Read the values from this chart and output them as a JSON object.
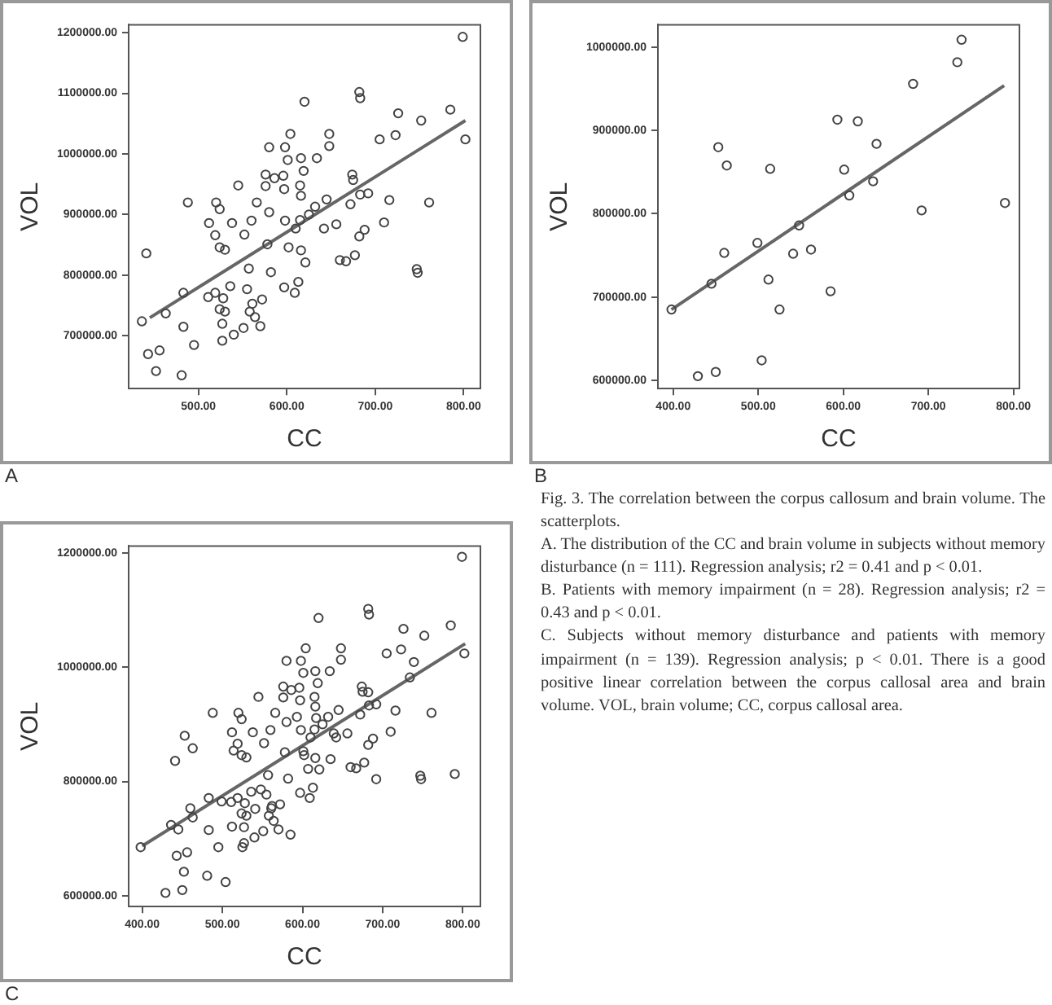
{
  "chart_data": [
    {
      "type": "scatter",
      "xlabel": "CC",
      "ylabel": "VOL",
      "annotations": [
        "A"
      ],
      "grid": false,
      "legend": false,
      "xlim": [
        421,
        819
      ],
      "ylim": [
        613000,
        1213000
      ],
      "xticks": [
        {
          "value": 500,
          "label": "500.00"
        },
        {
          "value": 600,
          "label": "600.00"
        },
        {
          "value": 700,
          "label": "700.00"
        },
        {
          "value": 800,
          "label": "800.00"
        }
      ],
      "yticks": [
        {
          "value": 700000,
          "label": "700000.00"
        },
        {
          "value": 800000,
          "label": "800000.00"
        },
        {
          "value": 900000,
          "label": "900000.00"
        },
        {
          "value": 1000000,
          "label": "1000000.00"
        },
        {
          "value": 1100000,
          "label": "1100000.00"
        },
        {
          "value": 1200000,
          "label": "1200000.00"
        }
      ],
      "series": [
        {
          "color": "#444444",
          "marker": "circle",
          "x": [
            436,
            441,
            443,
            456,
            452,
            463,
            481,
            483,
            483,
            488,
            495,
            512,
            511,
            519,
            520,
            524,
            524,
            530,
            519,
            524,
            528,
            530,
            527,
            527,
            536,
            538,
            540,
            545,
            551,
            552,
            555,
            558,
            560,
            561,
            564,
            566,
            557,
            572,
            570,
            576,
            580,
            580,
            582,
            578,
            576,
            586,
            596,
            597,
            598,
            604,
            601,
            598,
            597,
            799,
            620,
            682,
            683,
            726,
            752,
            785,
            802,
            723,
            705,
            648,
            648,
            634,
            616,
            619,
            615,
            616,
            674,
            675,
            672,
            683,
            692,
            716,
            761,
            632,
            645,
            625,
            615,
            610,
            642,
            656,
            710,
            682,
            688,
            602,
            616,
            621,
            660,
            667,
            677,
            747,
            748,
            613,
            609
          ],
          "values": [
            724000,
            836000,
            670000,
            676000,
            642000,
            737000,
            635000,
            715000,
            771000,
            920000,
            685000,
            886000,
            764000,
            866000,
            920000,
            909000,
            846000,
            842000,
            771000,
            744000,
            762000,
            740000,
            720000,
            692000,
            782000,
            886000,
            702000,
            948000,
            713000,
            867000,
            777000,
            740000,
            890000,
            753000,
            731000,
            920000,
            811000,
            760000,
            716000,
            947000,
            1011000,
            904000,
            805000,
            851000,
            966000,
            960000,
            964000,
            942000,
            1011000,
            1033000,
            990000,
            890000,
            780000,
            1193000,
            1086000,
            1102000,
            1092000,
            1067000,
            1055000,
            1073000,
            1024000,
            1031000,
            1024000,
            1033000,
            1013000,
            993000,
            993000,
            972000,
            948000,
            931000,
            966000,
            957000,
            917000,
            933000,
            935000,
            924000,
            920000,
            913000,
            925000,
            900000,
            891000,
            877000,
            877000,
            884000,
            887000,
            864000,
            875000,
            846000,
            841000,
            821000,
            825000,
            823000,
            833000,
            810000,
            804000,
            789000,
            771000
          ]
        },
        {
          "type": "line",
          "marker": "none",
          "color": "#666666",
          "x": [
            445,
            802
          ],
          "values": [
            730000,
            1055000
          ]
        }
      ]
    },
    {
      "type": "scatter",
      "xlabel": "CC",
      "ylabel": "VOL",
      "annotations": [
        "B"
      ],
      "grid": false,
      "legend": false,
      "xlim": [
        382,
        807
      ],
      "ylim": [
        590000,
        1027000
      ],
      "xticks": [
        {
          "value": 400,
          "label": "400.00"
        },
        {
          "value": 500,
          "label": "500.00"
        },
        {
          "value": 600,
          "label": "600.00"
        },
        {
          "value": 700,
          "label": "700.00"
        },
        {
          "value": 800,
          "label": "800.00"
        }
      ],
      "yticks": [
        {
          "value": 600000,
          "label": "600000.00"
        },
        {
          "value": 700000,
          "label": "700000.00"
        },
        {
          "value": 800000,
          "label": "800000.00"
        },
        {
          "value": 900000,
          "label": "900000.00"
        },
        {
          "value": 1000000,
          "label": "1000000.00"
        }
      ],
      "series": [
        {
          "color": "#444444",
          "marker": "circle",
          "x": [
            398,
            429,
            445,
            450,
            453,
            460,
            463,
            499,
            504,
            512,
            514,
            525,
            541,
            548,
            562,
            585,
            593,
            601,
            607,
            617,
            635,
            639,
            682,
            692,
            734,
            739,
            790
          ],
          "values": [
            685000,
            605000,
            716000,
            610000,
            880000,
            753000,
            858000,
            765000,
            624000,
            721000,
            854000,
            685000,
            752000,
            786000,
            757000,
            707000,
            913000,
            853000,
            822000,
            911000,
            839000,
            884000,
            956000,
            804000,
            982000,
            1009000,
            813000
          ]
        },
        {
          "type": "line",
          "marker": "none",
          "color": "#666666",
          "x": [
            398,
            789
          ],
          "values": [
            685000,
            954000
          ]
        }
      ]
    },
    {
      "type": "scatter",
      "xlabel": "CC",
      "ylabel": "VOL",
      "annotations": [
        "C"
      ],
      "grid": false,
      "legend": false,
      "xlim": [
        383,
        822
      ],
      "ylim": [
        581000,
        1212000
      ],
      "xticks": [
        {
          "value": 400,
          "label": "400.00"
        },
        {
          "value": 500,
          "label": "500.00"
        },
        {
          "value": 600,
          "label": "600.00"
        },
        {
          "value": 700,
          "label": "700.00"
        },
        {
          "value": 800,
          "label": "800.00"
        }
      ],
      "yticks": [
        {
          "value": 600000,
          "label": "600000.00"
        },
        {
          "value": 800000,
          "label": "800000.00"
        },
        {
          "value": 1000000,
          "label": "1000000.00"
        },
        {
          "value": 1200000,
          "label": "1200000.00"
        }
      ],
      "series": [
        {
          "color": "#444444",
          "marker": "circle",
          "x": [
            436,
            441,
            443,
            456,
            452,
            463,
            481,
            483,
            483,
            488,
            495,
            512,
            511,
            519,
            520,
            524,
            524,
            530,
            519,
            524,
            528,
            530,
            527,
            527,
            536,
            538,
            540,
            545,
            551,
            552,
            555,
            558,
            560,
            561,
            564,
            566,
            557,
            572,
            570,
            576,
            580,
            580,
            582,
            578,
            576,
            586,
            596,
            597,
            598,
            604,
            601,
            598,
            597,
            799,
            620,
            682,
            683,
            726,
            752,
            785,
            802,
            723,
            705,
            648,
            648,
            634,
            616,
            619,
            615,
            616,
            674,
            675,
            672,
            683,
            692,
            716,
            761,
            632,
            645,
            625,
            615,
            610,
            642,
            656,
            710,
            682,
            688,
            602,
            616,
            621,
            660,
            667,
            677,
            747,
            748,
            613,
            609,
            398,
            429,
            445,
            450,
            453,
            460,
            463,
            499,
            504,
            512,
            514,
            525,
            541,
            548,
            562,
            585,
            593,
            601,
            607,
            617,
            635,
            639,
            682,
            692,
            734,
            739,
            790
          ],
          "values": [
            724000,
            836000,
            670000,
            676000,
            642000,
            737000,
            635000,
            715000,
            771000,
            920000,
            685000,
            886000,
            764000,
            866000,
            920000,
            909000,
            846000,
            842000,
            771000,
            744000,
            762000,
            740000,
            720000,
            692000,
            782000,
            886000,
            702000,
            948000,
            713000,
            867000,
            777000,
            740000,
            890000,
            753000,
            731000,
            920000,
            811000,
            760000,
            716000,
            947000,
            1011000,
            904000,
            805000,
            851000,
            966000,
            960000,
            964000,
            942000,
            1011000,
            1033000,
            990000,
            890000,
            780000,
            1193000,
            1086000,
            1102000,
            1092000,
            1067000,
            1055000,
            1073000,
            1024000,
            1031000,
            1024000,
            1033000,
            1013000,
            993000,
            993000,
            972000,
            948000,
            931000,
            966000,
            957000,
            917000,
            933000,
            935000,
            924000,
            920000,
            913000,
            925000,
            900000,
            891000,
            877000,
            877000,
            884000,
            887000,
            864000,
            875000,
            846000,
            841000,
            821000,
            825000,
            823000,
            833000,
            810000,
            804000,
            789000,
            771000,
            685000,
            605000,
            716000,
            610000,
            880000,
            753000,
            858000,
            765000,
            624000,
            721000,
            854000,
            685000,
            752000,
            786000,
            757000,
            707000,
            913000,
            853000,
            822000,
            911000,
            839000,
            884000,
            956000,
            804000,
            982000,
            1009000,
            813000
          ]
        },
        {
          "type": "line",
          "marker": "none",
          "color": "#666666",
          "x": [
            400,
            803
          ],
          "values": [
            687000,
            1041000
          ]
        }
      ]
    },
    {
      "type": "other",
      "annotations": [
        "Fig. 3. The correlation between the corpus callosum and brain volume. The scatterplots.",
        "A. The distribution of the CC and brain volume in subjects without memory disturbance (n = 111). Regression analysis; r2 = 0.41 and p < 0.01.",
        "B. Patients with memory impairment (n = 28). Regression analysis; r2 = 0.43 and p < 0.01.",
        "C. Subjects without memory disturbance and patients with memory impairment (n = 139). Regression analysis; p < 0.01. There is a good positive linear correlation between the corpus callosal area and brain volume. VOL, brain volume; CC, corpus callosal area."
      ]
    }
  ]
}
